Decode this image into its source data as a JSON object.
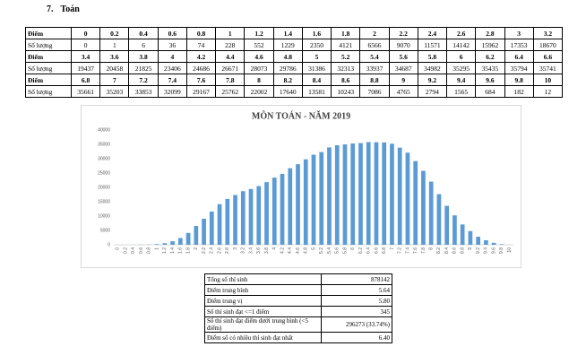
{
  "heading": {
    "number": "7.",
    "text": "Toán"
  },
  "score_table": {
    "rows": [
      {
        "label": "Điểm",
        "values": [
          0,
          0.2,
          0.4,
          0.6,
          0.8,
          1,
          1.2,
          1.4,
          1.6,
          1.8,
          2,
          2.2,
          2.4,
          2.6,
          2.8,
          3,
          3.2
        ]
      },
      {
        "label": "Số lượng",
        "values": [
          0,
          1,
          6,
          36,
          74,
          228,
          552,
          1229,
          2350,
          4121,
          6566,
          9070,
          11571,
          14142,
          15962,
          17353,
          18670
        ]
      },
      {
        "label": "Điểm",
        "values": [
          3.4,
          3.6,
          3.8,
          4,
          4.2,
          4.4,
          4.6,
          4.8,
          5,
          5.2,
          5.4,
          5.6,
          5.8,
          6,
          6.2,
          6.4,
          6.6
        ]
      },
      {
        "label": "Số lượng",
        "values": [
          19437,
          20458,
          21825,
          23406,
          24686,
          26671,
          28073,
          29786,
          31386,
          32313,
          33937,
          34687,
          34982,
          35295,
          35435,
          35794,
          35741
        ]
      },
      {
        "label": "Điểm",
        "values": [
          6.8,
          7,
          7.2,
          7.4,
          7.6,
          7.8,
          8,
          8.2,
          8.4,
          8.6,
          8.8,
          9,
          9.2,
          9.4,
          9.6,
          9.8,
          10
        ]
      },
      {
        "label": "Số lượng",
        "values": [
          35661,
          35203,
          33853,
          32099,
          29167,
          25762,
          22002,
          17640,
          13581,
          10243,
          7086,
          4765,
          2794,
          1565,
          684,
          182,
          12
        ]
      }
    ]
  },
  "chart_data": {
    "type": "bar",
    "title": "MÔN TOÁN - NĂM 2019",
    "categories": [
      "0",
      "0.2",
      "0.4",
      "0.6",
      "0.8",
      "1",
      "1.2",
      "1.4",
      "1.6",
      "1.8",
      "2",
      "2.2",
      "2.4",
      "2.6",
      "2.8",
      "3",
      "3.2",
      "3.4",
      "3.6",
      "3.8",
      "4",
      "4.2",
      "4.4",
      "4.6",
      "4.8",
      "5",
      "5.2",
      "5.4",
      "5.6",
      "5.8",
      "6",
      "6.2",
      "6.4",
      "6.6",
      "6.8",
      "7",
      "7.2",
      "7.4",
      "7.6",
      "7.8",
      "8",
      "8.2",
      "8.4",
      "8.6",
      "8.8",
      "9",
      "9.2",
      "9.4",
      "9.6",
      "9.8",
      "10"
    ],
    "values": [
      0,
      1,
      6,
      36,
      74,
      228,
      552,
      1229,
      2350,
      4121,
      6566,
      9070,
      11571,
      14142,
      15962,
      17353,
      18670,
      19437,
      20458,
      21825,
      23406,
      24686,
      26671,
      28073,
      29786,
      31386,
      32313,
      33937,
      34687,
      34982,
      35295,
      35435,
      35794,
      35741,
      35661,
      35203,
      33853,
      32099,
      29167,
      25762,
      22002,
      17640,
      13581,
      10243,
      7086,
      4765,
      2794,
      1565,
      684,
      182,
      12
    ],
    "color": "#5b9bd5",
    "ylim": [
      0,
      40000
    ],
    "yticks": [
      0,
      5000,
      10000,
      15000,
      20000,
      25000,
      30000,
      35000,
      40000
    ],
    "grid": false
  },
  "summary_table": {
    "rows": [
      [
        "Tổng số thí sinh",
        "878142"
      ],
      [
        "Điểm trung bình",
        "5.64"
      ],
      [
        "Điểm trung vị",
        "5.80"
      ],
      [
        "Số thí sinh đạt <=1 điểm",
        "345"
      ],
      [
        "Số thí sinh đạt điểm dưới trung bình (<5 điểm)",
        "296273 (33.74%)"
      ],
      [
        "Điểm số có nhiều thí sinh đạt nhất",
        "6.40"
      ]
    ]
  }
}
